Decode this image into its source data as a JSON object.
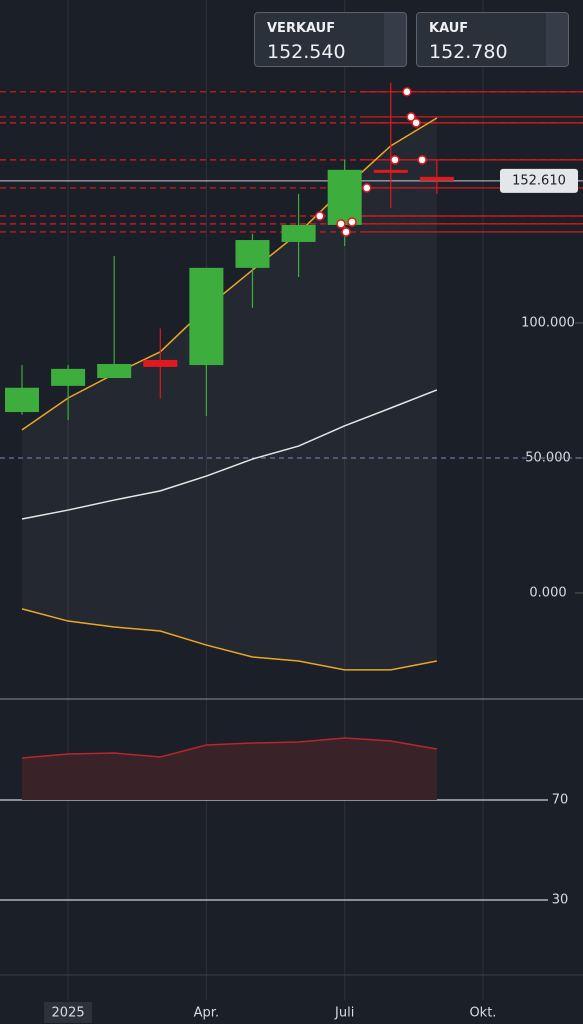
{
  "quotes": {
    "bid": {
      "label": "VERKAUF",
      "price": "152.540"
    },
    "ask": {
      "label": "KAUF",
      "price": "152.780"
    }
  },
  "chart_data": [
    {
      "type": "candlestick",
      "x": [
        0,
        1,
        2,
        3,
        4,
        5,
        6,
        7,
        8,
        9
      ],
      "open": [
        67,
        76.7,
        79.6,
        86.3,
        84.4,
        120.4,
        130,
        136.3,
        156.7,
        154.1
      ],
      "high": [
        84.4,
        84.4,
        124.8,
        98,
        120.4,
        133,
        147.8,
        160.4,
        189,
        160.4
      ],
      "low": [
        66,
        64,
        79.6,
        72,
        65.6,
        105.6,
        117,
        128.5,
        142.6,
        147.8
      ],
      "close": [
        76,
        83,
        84.8,
        83.7,
        120.4,
        130.7,
        136.3,
        156.7,
        155.9,
        152.6
      ],
      "up_color": "#3dae3d",
      "down_color": "#e0191f",
      "series": [
        {
          "color": "#e8a825",
          "values": [
            60.4,
            72.2,
            81.1,
            89.3,
            105.6,
            119.6,
            133.3,
            150,
            165.6,
            175.9
          ]
        },
        {
          "color": "#e6e6e6",
          "values": [
            27.4,
            30.7,
            34.4,
            37.8,
            43.3,
            49.6,
            54.4,
            61.9,
            68.5,
            75.2
          ]
        },
        {
          "color": "#e8a825",
          "values": [
            -5.9,
            -10.4,
            -12.6,
            -14.1,
            -19.3,
            -23.7,
            -25.2,
            -28.5,
            -28.5,
            -25.2
          ]
        }
      ],
      "levels": [
        185.6,
        176.3,
        174.1,
        160.4,
        150,
        139.6,
        136.7,
        133.7
      ],
      "level_color": "#e0191f",
      "markers": [
        {
          "x": 8.35,
          "value": 185.6
        },
        {
          "x": 8.44,
          "value": 176.3
        },
        {
          "x": 8.55,
          "value": 174.1
        },
        {
          "x": 8.09,
          "value": 160.4
        },
        {
          "x": 8.68,
          "value": 160.4
        },
        {
          "x": 7.48,
          "value": 150
        },
        {
          "x": 6.46,
          "value": 139.6
        },
        {
          "x": 6.92,
          "value": 136.7
        },
        {
          "x": 7.16,
          "value": 137.4
        },
        {
          "x": 7.03,
          "value": 133.7
        }
      ],
      "last_price": {
        "value": 152.61,
        "label": "152.610"
      },
      "reference_line": 50,
      "xlim": [
        -0.477,
        12.17
      ],
      "ylim": [
        -38.9,
        219.6
      ],
      "yticks": [
        {
          "value": 0,
          "label": "0.000"
        },
        {
          "value": 50,
          "label": "50.000"
        },
        {
          "value": 100,
          "label": "100.000"
        }
      ],
      "xticks": [
        {
          "value": 1,
          "label": "2025"
        },
        {
          "value": 4,
          "label": "Apr."
        },
        {
          "value": 7,
          "label": "Juli"
        },
        {
          "value": 10,
          "label": "Okt."
        }
      ]
    },
    {
      "type": "area",
      "x": [
        0,
        1,
        2,
        3,
        4,
        5,
        6,
        7,
        8,
        9
      ],
      "values": [
        86.8,
        88.4,
        88.8,
        87.2,
        92,
        92.8,
        93.2,
        94.8,
        93.6,
        90.4
      ],
      "color": "#b8262b",
      "base": 70,
      "ylim": [
        0,
        110
      ],
      "yticks": [
        70,
        30
      ]
    }
  ]
}
